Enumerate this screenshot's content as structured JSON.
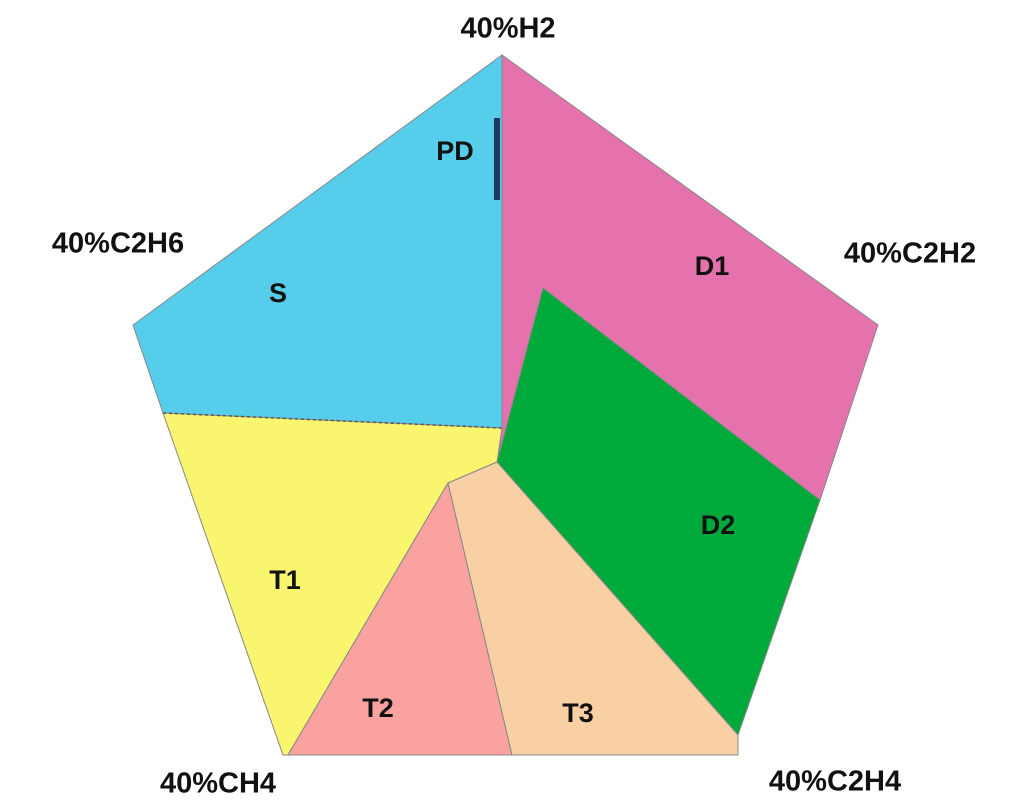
{
  "vertices": [
    "40%H2",
    "40%C2H6",
    "40%C2H2",
    "40%CH4",
    "40%C2H4"
  ],
  "regions": [
    "PD",
    "S",
    "D1",
    "D2",
    "T1",
    "T2",
    "T3"
  ]
}
